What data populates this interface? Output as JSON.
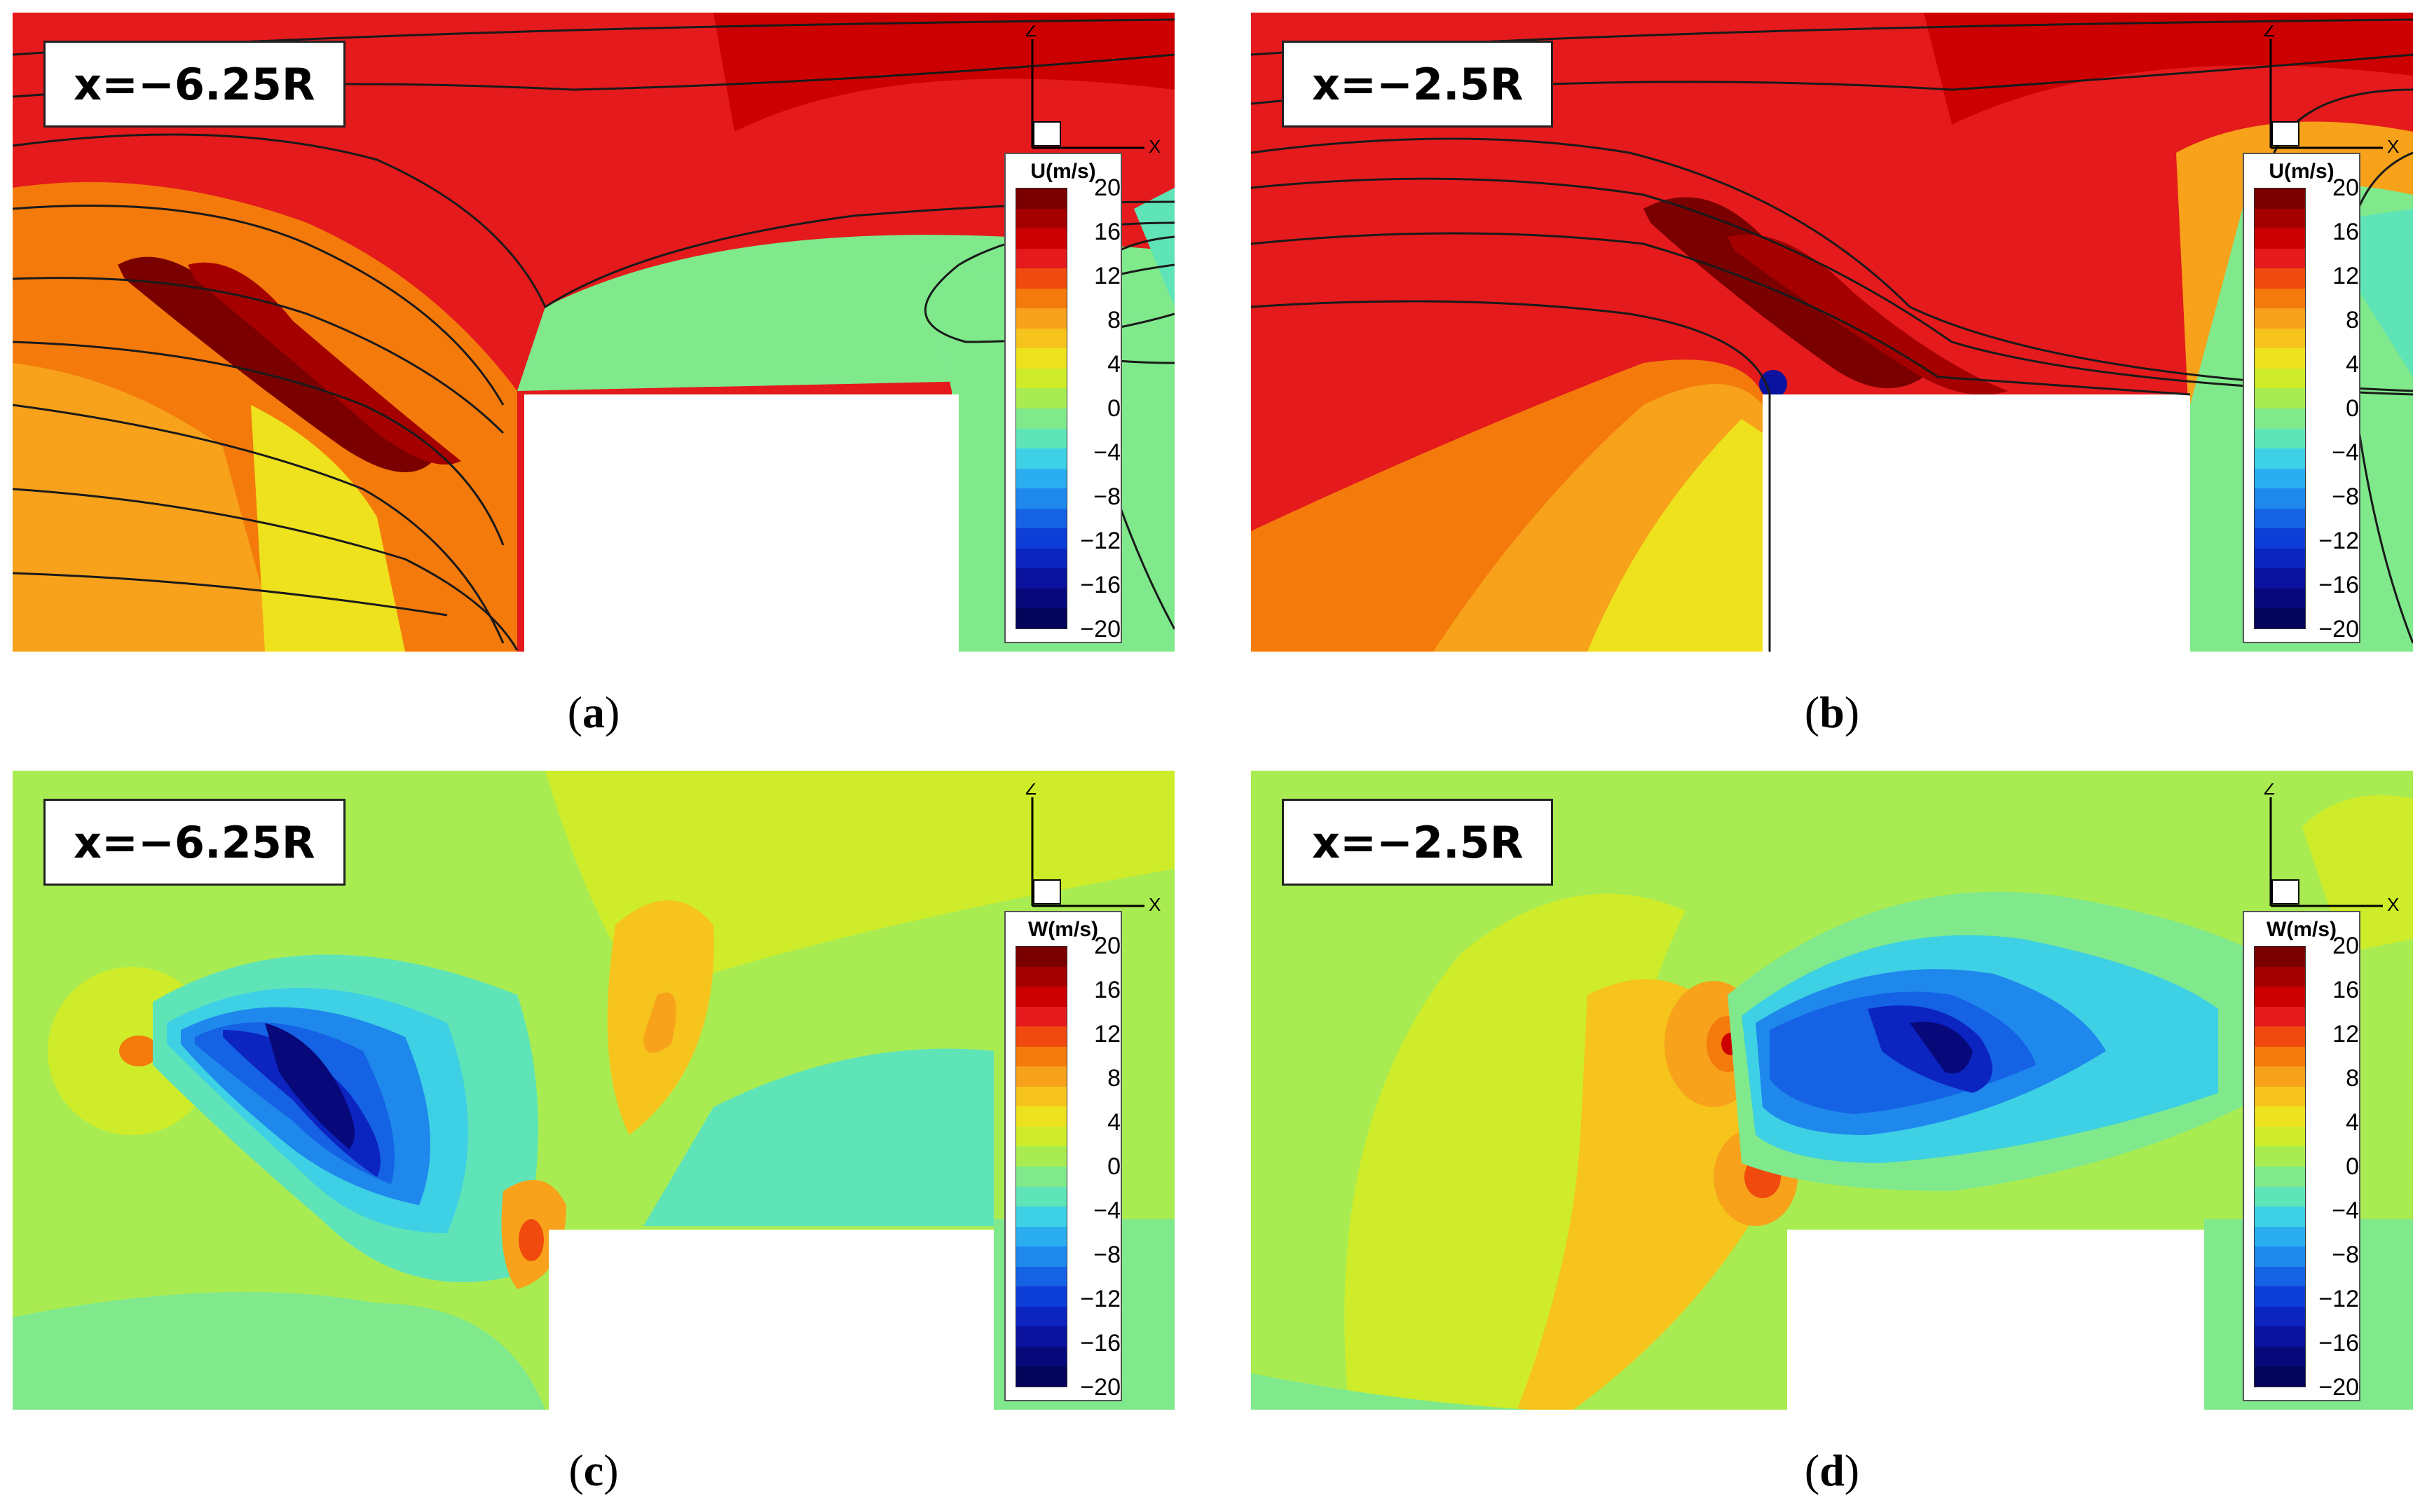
{
  "panels": [
    {
      "id": "a",
      "location_label": "x=−6.25R",
      "legend_title": "U(m/s)",
      "caption": "a",
      "field": "U",
      "streamlines": true,
      "wall_offset": "far"
    },
    {
      "id": "b",
      "location_label": "x=−2.5R",
      "legend_title": "U(m/s)",
      "caption": "b",
      "field": "U",
      "streamlines": true,
      "wall_offset": "near"
    },
    {
      "id": "c",
      "location_label": "x=−6.25R",
      "legend_title": "W(m/s)",
      "caption": "c",
      "field": "W",
      "streamlines": false,
      "wall_offset": "far"
    },
    {
      "id": "d",
      "location_label": "x=−2.5R",
      "legend_title": "W(m/s)",
      "caption": "d",
      "field": "W",
      "streamlines": false,
      "wall_offset": "near"
    }
  ],
  "legend_ticks": [
    "20",
    "16",
    "12",
    "8",
    "4",
    "0",
    "−4",
    "−8",
    "−12",
    "−16",
    "−20"
  ],
  "colormap": [
    "#7a0000",
    "#a40000",
    "#cc0000",
    "#e41a1c",
    "#f04a0e",
    "#f47a0c",
    "#f7a21a",
    "#f6c41c",
    "#eee21e",
    "#cfec2a",
    "#a9ec52",
    "#7fe98c",
    "#5fe4b8",
    "#3ed0e4",
    "#2aaef0",
    "#1e88ec",
    "#1562e4",
    "#0e3ed8",
    "#0c24c0",
    "#0a129e",
    "#07097a",
    "#04045a"
  ],
  "axis_labels": {
    "vertical": "Z",
    "horizontal": "X"
  },
  "colors": {
    "background_W": "#a7ec52",
    "wall": "#ffffff",
    "streamline": "#1a1a1a"
  }
}
